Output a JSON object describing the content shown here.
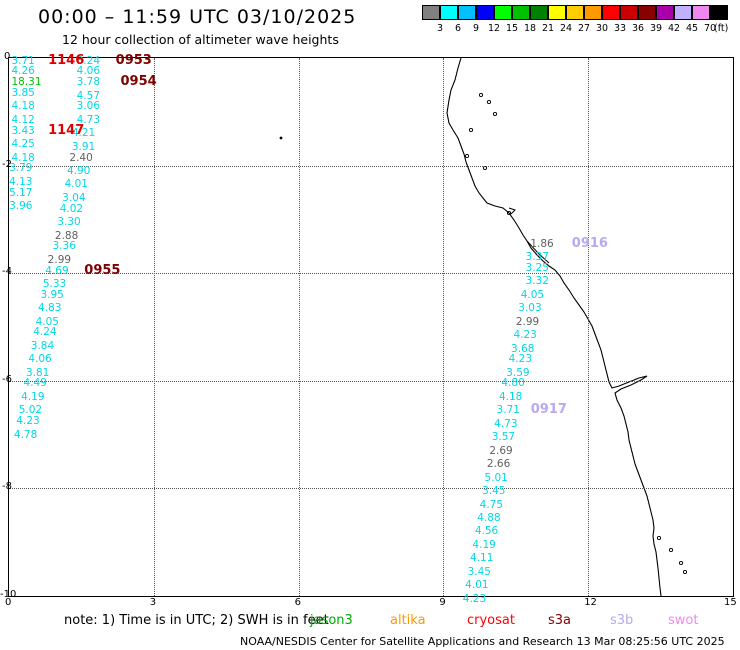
{
  "title": "00:00 – 11:59 UTC 03/10/2025",
  "subtitle": "12 hour collection of altimeter wave heights",
  "legend": {
    "labels": [
      "3",
      "6",
      "9",
      "12",
      "15",
      "18",
      "21",
      "24",
      "27",
      "30",
      "33",
      "36",
      "39",
      "42",
      "45",
      "70"
    ],
    "unit": "(ft)",
    "colors": [
      "#808080",
      "#00ffff",
      "#00c0ff",
      "#0000ff",
      "#00ff00",
      "#00c000",
      "#008000",
      "#ffff00",
      "#ffcc00",
      "#ff9900",
      "#ff0000",
      "#cc0000",
      "#880000",
      "#aa00aa",
      "#c0b0ff",
      "#ee88ee",
      "#000000"
    ]
  },
  "axes": {
    "x_ticks": [
      "0",
      "3",
      "6",
      "9",
      "12",
      "15"
    ],
    "y_ticks": [
      "0",
      "-2",
      "-4",
      "-6",
      "-8",
      "-10"
    ],
    "x_range": [
      0,
      15
    ],
    "y_range": [
      -10,
      0
    ]
  },
  "colors": {
    "grey": "#606060",
    "cyan": "#00d8e8",
    "green": "#00c000",
    "red": "#e00000",
    "darkred": "#800000",
    "lavender": "#b8a8f0",
    "coast": "#000000"
  },
  "swh": [
    {
      "x": 0.3,
      "y": -0.05,
      "v": "3.71",
      "c": "cyan"
    },
    {
      "x": 1.65,
      "y": -0.05,
      "v": "3.24",
      "c": "cyan"
    },
    {
      "x": 0.3,
      "y": -0.25,
      "v": "4.26",
      "c": "cyan"
    },
    {
      "x": 1.65,
      "y": -0.25,
      "v": "4.06",
      "c": "cyan"
    },
    {
      "x": 0.3,
      "y": -0.45,
      "v": "18.31",
      "c": "green"
    },
    {
      "x": 1.65,
      "y": -0.45,
      "v": "3.78",
      "c": "cyan"
    },
    {
      "x": 0.3,
      "y": -0.65,
      "v": "3.85",
      "c": "cyan"
    },
    {
      "x": 1.65,
      "y": -0.7,
      "v": "4.57",
      "c": "cyan"
    },
    {
      "x": 0.3,
      "y": -0.9,
      "v": "4.18",
      "c": "cyan"
    },
    {
      "x": 1.65,
      "y": -0.9,
      "v": "3.06",
      "c": "cyan"
    },
    {
      "x": 0.3,
      "y": -1.15,
      "v": "4.12",
      "c": "cyan"
    },
    {
      "x": 1.65,
      "y": -1.15,
      "v": "4.73",
      "c": "cyan"
    },
    {
      "x": 0.3,
      "y": -1.35,
      "v": "3.43",
      "c": "cyan"
    },
    {
      "x": 1.55,
      "y": -1.4,
      "v": "4.21",
      "c": "cyan"
    },
    {
      "x": 0.3,
      "y": -1.6,
      "v": "4.25",
      "c": "cyan"
    },
    {
      "x": 1.55,
      "y": -1.65,
      "v": "3.91",
      "c": "cyan"
    },
    {
      "x": 0.3,
      "y": -1.85,
      "v": "4.18",
      "c": "cyan"
    },
    {
      "x": 1.5,
      "y": -1.85,
      "v": "2.40",
      "c": "grey"
    },
    {
      "x": 0.25,
      "y": -2.05,
      "v": "3.79",
      "c": "cyan"
    },
    {
      "x": 1.45,
      "y": -2.1,
      "v": "4.90",
      "c": "cyan"
    },
    {
      "x": 0.25,
      "y": -2.3,
      "v": "4.13",
      "c": "cyan"
    },
    {
      "x": 1.4,
      "y": -2.35,
      "v": "4.01",
      "c": "cyan"
    },
    {
      "x": 0.25,
      "y": -2.5,
      "v": "5.17",
      "c": "cyan"
    },
    {
      "x": 1.35,
      "y": -2.6,
      "v": "3.04",
      "c": "cyan"
    },
    {
      "x": 0.25,
      "y": -2.75,
      "v": "3.96",
      "c": "cyan"
    },
    {
      "x": 1.3,
      "y": -2.8,
      "v": "4.02",
      "c": "cyan"
    },
    {
      "x": 1.25,
      "y": -3.05,
      "v": "3.30",
      "c": "cyan"
    },
    {
      "x": 1.2,
      "y": -3.3,
      "v": "2.88",
      "c": "grey"
    },
    {
      "x": 1.15,
      "y": -3.5,
      "v": "3.36",
      "c": "cyan"
    },
    {
      "x": 1.05,
      "y": -3.75,
      "v": "2.99",
      "c": "grey"
    },
    {
      "x": 1.0,
      "y": -3.95,
      "v": "4.69",
      "c": "cyan"
    },
    {
      "x": 0.95,
      "y": -4.2,
      "v": "5.33",
      "c": "cyan"
    },
    {
      "x": 0.9,
      "y": -4.4,
      "v": "3.95",
      "c": "cyan"
    },
    {
      "x": 0.85,
      "y": -4.65,
      "v": "4.83",
      "c": "cyan"
    },
    {
      "x": 0.8,
      "y": -4.9,
      "v": "4.05",
      "c": "cyan"
    },
    {
      "x": 0.75,
      "y": -5.1,
      "v": "4.24",
      "c": "cyan"
    },
    {
      "x": 0.7,
      "y": -5.35,
      "v": "3.84",
      "c": "cyan"
    },
    {
      "x": 0.65,
      "y": -5.6,
      "v": "4.06",
      "c": "cyan"
    },
    {
      "x": 0.6,
      "y": -5.85,
      "v": "3.81",
      "c": "cyan"
    },
    {
      "x": 0.55,
      "y": -6.05,
      "v": "4.49",
      "c": "cyan"
    },
    {
      "x": 0.5,
      "y": -6.3,
      "v": "4.19",
      "c": "cyan"
    },
    {
      "x": 0.45,
      "y": -6.55,
      "v": "5.02",
      "c": "cyan"
    },
    {
      "x": 0.4,
      "y": -6.75,
      "v": "4.23",
      "c": "cyan"
    },
    {
      "x": 0.35,
      "y": -7.0,
      "v": "4.78",
      "c": "cyan"
    },
    {
      "x": 11.05,
      "y": -3.45,
      "v": "1.86",
      "c": "grey"
    },
    {
      "x": 10.95,
      "y": -3.7,
      "v": "3.37",
      "c": "cyan"
    },
    {
      "x": 10.95,
      "y": -3.9,
      "v": "3.25",
      "c": "cyan"
    },
    {
      "x": 10.95,
      "y": -4.15,
      "v": "3.32",
      "c": "cyan"
    },
    {
      "x": 10.85,
      "y": -4.4,
      "v": "4.05",
      "c": "cyan"
    },
    {
      "x": 10.8,
      "y": -4.65,
      "v": "3.03",
      "c": "cyan"
    },
    {
      "x": 10.75,
      "y": -4.9,
      "v": "2.99",
      "c": "grey"
    },
    {
      "x": 10.7,
      "y": -5.15,
      "v": "4.23",
      "c": "cyan"
    },
    {
      "x": 10.65,
      "y": -5.4,
      "v": "3.68",
      "c": "cyan"
    },
    {
      "x": 10.6,
      "y": -5.6,
      "v": "4.23",
      "c": "cyan"
    },
    {
      "x": 10.55,
      "y": -5.85,
      "v": "3.59",
      "c": "cyan"
    },
    {
      "x": 10.45,
      "y": -6.05,
      "v": "4.80",
      "c": "cyan"
    },
    {
      "x": 10.4,
      "y": -6.3,
      "v": "4.18",
      "c": "cyan"
    },
    {
      "x": 10.35,
      "y": -6.55,
      "v": "3.71",
      "c": "cyan"
    },
    {
      "x": 10.3,
      "y": -6.8,
      "v": "4.73",
      "c": "cyan"
    },
    {
      "x": 10.25,
      "y": -7.05,
      "v": "3.57",
      "c": "cyan"
    },
    {
      "x": 10.2,
      "y": -7.3,
      "v": "2.69",
      "c": "grey"
    },
    {
      "x": 10.15,
      "y": -7.55,
      "v": "2.66",
      "c": "grey"
    },
    {
      "x": 10.1,
      "y": -7.8,
      "v": "5.01",
      "c": "cyan"
    },
    {
      "x": 10.05,
      "y": -8.05,
      "v": "3.45",
      "c": "cyan"
    },
    {
      "x": 10.0,
      "y": -8.3,
      "v": "4.75",
      "c": "cyan"
    },
    {
      "x": 9.95,
      "y": -8.55,
      "v": "4.88",
      "c": "cyan"
    },
    {
      "x": 9.9,
      "y": -8.8,
      "v": "4.56",
      "c": "cyan"
    },
    {
      "x": 9.85,
      "y": -9.05,
      "v": "4.19",
      "c": "cyan"
    },
    {
      "x": 9.8,
      "y": -9.3,
      "v": "4.11",
      "c": "cyan"
    },
    {
      "x": 9.75,
      "y": -9.55,
      "v": "3.45",
      "c": "cyan"
    },
    {
      "x": 9.7,
      "y": -9.8,
      "v": "4.01",
      "c": "cyan"
    },
    {
      "x": 9.65,
      "y": -10.05,
      "v": "4.23",
      "c": "cyan"
    }
  ],
  "passes": [
    {
      "x": 1.1,
      "y": -0.05,
      "t": "1146",
      "c": "red"
    },
    {
      "x": 2.5,
      "y": -0.05,
      "t": "0953",
      "c": "darkred"
    },
    {
      "x": 2.6,
      "y": -0.45,
      "t": "0954",
      "c": "darkred"
    },
    {
      "x": 1.1,
      "y": -1.35,
      "t": "1147",
      "c": "red"
    },
    {
      "x": 1.85,
      "y": -3.95,
      "t": "0955",
      "c": "darkred"
    },
    {
      "x": 11.95,
      "y": -3.45,
      "t": "0916",
      "c": "lavender"
    },
    {
      "x": 11.1,
      "y": -6.55,
      "t": "0917",
      "c": "lavender"
    }
  ],
  "note": "note:  1) Time is in UTC;  2) SWH is in feet",
  "satellites": [
    {
      "name": "jason3",
      "c": "#00aa00"
    },
    {
      "name": "altika",
      "c": "#ff9900"
    },
    {
      "name": "cryosat",
      "c": "#ff0000"
    },
    {
      "name": "s3a",
      "c": "#800000"
    },
    {
      "name": "s3b",
      "c": "#b8a8f0"
    },
    {
      "name": "swot",
      "c": "#ee88ee"
    }
  ],
  "footer": "NOAA/NESDIS Center for Satellite Applications and Research    13 Mar 08:25:56 UTC 2025"
}
